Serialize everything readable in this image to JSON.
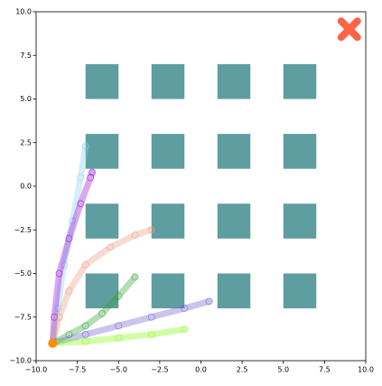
{
  "chart_data": {
    "type": "line",
    "xlim": [
      -10,
      10
    ],
    "ylim": [
      -10,
      10
    ],
    "xticks": [
      {
        "value": -10,
        "label": "−10.0"
      },
      {
        "value": -7.5,
        "label": "−7.5"
      },
      {
        "value": -5,
        "label": "−5.0"
      },
      {
        "value": -2.5,
        "label": "−2.5"
      },
      {
        "value": 0,
        "label": "0.0"
      },
      {
        "value": 2.5,
        "label": "2.5"
      },
      {
        "value": 5,
        "label": "5.0"
      },
      {
        "value": 7.5,
        "label": "7.5"
      },
      {
        "value": 10,
        "label": "10.0"
      }
    ],
    "yticks": [
      {
        "value": -10,
        "label": "−10.0"
      },
      {
        "value": -7.5,
        "label": "−7.5"
      },
      {
        "value": -5,
        "label": "−5.0"
      },
      {
        "value": -2.5,
        "label": "−2.5"
      },
      {
        "value": 0,
        "label": "0.0"
      },
      {
        "value": 2.5,
        "label": "2.5"
      },
      {
        "value": 5,
        "label": "5.0"
      },
      {
        "value": 7.5,
        "label": "7.5"
      },
      {
        "value": 10,
        "label": "10.0"
      }
    ],
    "obstacle_color": "#5f9ea0",
    "obstacles": [
      {
        "x": -7,
        "y": 5,
        "width": 2,
        "height": 2
      },
      {
        "x": -3,
        "y": 5,
        "width": 2,
        "height": 2
      },
      {
        "x": 1,
        "y": 5,
        "width": 2,
        "height": 2
      },
      {
        "x": 5,
        "y": 5,
        "width": 2,
        "height": 2
      },
      {
        "x": -7,
        "y": 1,
        "width": 2,
        "height": 2
      },
      {
        "x": -3,
        "y": 1,
        "width": 2,
        "height": 2
      },
      {
        "x": 1,
        "y": 1,
        "width": 2,
        "height": 2
      },
      {
        "x": 5,
        "y": 1,
        "width": 2,
        "height": 2
      },
      {
        "x": -7,
        "y": -3,
        "width": 2,
        "height": 2
      },
      {
        "x": -3,
        "y": -3,
        "width": 2,
        "height": 2
      },
      {
        "x": 1,
        "y": -3,
        "width": 2,
        "height": 2
      },
      {
        "x": 5,
        "y": -3,
        "width": 2,
        "height": 2
      },
      {
        "x": -7,
        "y": -7,
        "width": 2,
        "height": 2
      },
      {
        "x": -3,
        "y": -7,
        "width": 2,
        "height": 2
      },
      {
        "x": 1,
        "y": -7,
        "width": 2,
        "height": 2
      },
      {
        "x": 5,
        "y": -7,
        "width": 2,
        "height": 2
      }
    ],
    "goal": {
      "x": 9,
      "y": 9,
      "color": "#ff6347"
    },
    "start": {
      "x": -9,
      "y": -9,
      "color": "#ff8c00"
    },
    "series": [
      {
        "color": "#87ceeb",
        "x": [
          -9,
          -8.7,
          -8.3,
          -7.8,
          -7.3,
          -7
        ],
        "y": [
          -9,
          -7,
          -4.5,
          -2,
          0.5,
          2.3
        ]
      },
      {
        "color": "#9400d3",
        "x": [
          -9,
          -8.9,
          -8.6,
          -8,
          -7.3,
          -6.7,
          -6.6
        ],
        "y": [
          -9,
          -7.5,
          -5,
          -3,
          -1,
          0.5,
          0.8
        ]
      },
      {
        "color": "#e9967a",
        "x": [
          -9,
          -8.6,
          -8,
          -7,
          -5.5,
          -4,
          -3
        ],
        "y": [
          -9,
          -7.5,
          -6,
          -4.5,
          -3.5,
          -2.8,
          -2.5
        ]
      },
      {
        "color": "#2ca02c",
        "x": [
          -9,
          -8,
          -7,
          -6,
          -5,
          -4
        ],
        "y": [
          -9,
          -8.5,
          -8,
          -7.3,
          -6.3,
          -5.2
        ]
      },
      {
        "color": "#6a5acd",
        "x": [
          -9,
          -7,
          -5,
          -3,
          -1,
          0.5
        ],
        "y": [
          -9,
          -8.5,
          -8,
          -7.5,
          -7,
          -6.6
        ]
      },
      {
        "color": "#7cfc00",
        "x": [
          -9,
          -7,
          -5,
          -3,
          -1
        ],
        "y": [
          -9,
          -8.9,
          -8.7,
          -8.5,
          -8.2
        ]
      }
    ]
  }
}
